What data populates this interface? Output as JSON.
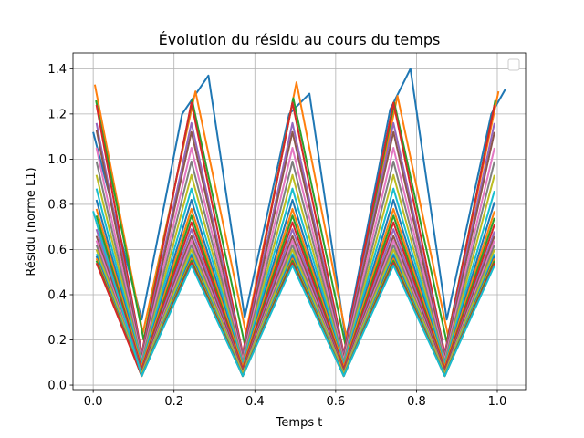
{
  "chart_data": {
    "type": "line",
    "title": "Évolution du résidu au cours du temps",
    "xlabel": "Temps t",
    "ylabel": "Résidu (norme L1)",
    "xlim": [
      -0.05,
      1.07
    ],
    "ylim": [
      -0.02,
      1.47
    ],
    "xticks": [
      "0.0",
      "0.2",
      "0.4",
      "0.6",
      "0.8",
      "1.0"
    ],
    "yticks": [
      "0.0",
      "0.2",
      "0.4",
      "0.6",
      "0.8",
      "1.0",
      "1.2",
      "1.4"
    ],
    "grid": true,
    "legend": "top-right (empty)",
    "period": 0.25,
    "series": [
      {
        "color": "#1f77b4",
        "x": [
          0.0,
          0.12,
          0.22,
          0.285,
          0.375,
          0.485,
          0.535,
          0.625,
          0.735,
          0.785,
          0.875,
          0.985,
          1.02
        ],
        "y": [
          1.12,
          0.29,
          1.2,
          1.37,
          0.3,
          1.2,
          1.29,
          0.2,
          1.22,
          1.4,
          0.29,
          1.2,
          1.31
        ]
      },
      {
        "color": "#ff7f0e",
        "x": [
          0.004,
          0.123,
          0.253,
          0.378,
          0.503,
          0.628,
          0.753,
          0.878,
          1.003
        ],
        "y": [
          1.33,
          0.23,
          1.3,
          0.23,
          1.34,
          0.2,
          1.28,
          0.22,
          1.3
        ]
      },
      {
        "color": "#2ca02c",
        "x": [
          0.007,
          0.125,
          0.245,
          0.375,
          0.495,
          0.625,
          0.745,
          0.875,
          0.995
        ],
        "y": [
          1.26,
          0.2,
          1.26,
          0.18,
          1.27,
          0.17,
          1.25,
          0.19,
          1.26
        ]
      },
      {
        "color": "#d62728",
        "x": [
          0.008,
          0.12,
          0.243,
          0.37,
          0.493,
          0.62,
          0.743,
          0.87,
          0.993
        ],
        "y": [
          1.24,
          0.14,
          1.25,
          0.14,
          1.25,
          0.14,
          1.25,
          0.14,
          1.24
        ]
      },
      {
        "color": "#9467bd",
        "x": [
          0.008,
          0.12,
          0.243,
          0.37,
          0.493,
          0.62,
          0.743,
          0.87,
          0.993
        ],
        "y": [
          1.16,
          0.13,
          1.16,
          0.13,
          1.16,
          0.13,
          1.16,
          0.13,
          1.16
        ]
      },
      {
        "color": "#8c564b",
        "x": [
          0.008,
          0.12,
          0.243,
          0.37,
          0.493,
          0.62,
          0.743,
          0.87,
          0.993
        ],
        "y": [
          1.13,
          0.12,
          1.12,
          0.12,
          1.12,
          0.12,
          1.12,
          0.12,
          1.12
        ]
      },
      {
        "color": "#e377c2",
        "x": [
          0.008,
          0.12,
          0.243,
          0.37,
          0.493,
          0.62,
          0.743,
          0.87,
          0.993
        ],
        "y": [
          1.05,
          0.11,
          1.05,
          0.11,
          1.05,
          0.11,
          1.05,
          0.11,
          1.05
        ]
      },
      {
        "color": "#7f7f7f",
        "x": [
          0.008,
          0.12,
          0.243,
          0.37,
          0.493,
          0.62,
          0.743,
          0.87,
          0.993
        ],
        "y": [
          0.99,
          0.1,
          0.99,
          0.1,
          0.99,
          0.1,
          0.99,
          0.1,
          0.99
        ]
      },
      {
        "color": "#bcbd22",
        "x": [
          0.008,
          0.12,
          0.243,
          0.37,
          0.493,
          0.62,
          0.743,
          0.87,
          0.993
        ],
        "y": [
          0.93,
          0.09,
          0.93,
          0.09,
          0.93,
          0.09,
          0.93,
          0.09,
          0.93
        ]
      },
      {
        "color": "#17becf",
        "x": [
          0.008,
          0.12,
          0.243,
          0.37,
          0.493,
          0.62,
          0.743,
          0.87,
          0.993
        ],
        "y": [
          0.87,
          0.09,
          0.87,
          0.09,
          0.87,
          0.09,
          0.87,
          0.09,
          0.86
        ]
      },
      {
        "color": "#1f77b4",
        "x": [
          0.008,
          0.12,
          0.243,
          0.37,
          0.493,
          0.62,
          0.743,
          0.87,
          0.993
        ],
        "y": [
          0.82,
          0.08,
          0.82,
          0.08,
          0.82,
          0.08,
          0.82,
          0.08,
          0.81
        ]
      },
      {
        "color": "#ff7f0e",
        "x": [
          0.008,
          0.12,
          0.243,
          0.37,
          0.493,
          0.62,
          0.743,
          0.87,
          0.993
        ],
        "y": [
          0.78,
          0.08,
          0.78,
          0.08,
          0.78,
          0.08,
          0.78,
          0.08,
          0.77
        ]
      },
      {
        "color": "#2ca02c",
        "x": [
          0.008,
          0.12,
          0.243,
          0.37,
          0.493,
          0.62,
          0.743,
          0.87,
          0.993
        ],
        "y": [
          0.75,
          0.07,
          0.75,
          0.07,
          0.75,
          0.07,
          0.75,
          0.07,
          0.74
        ]
      },
      {
        "color": "#d62728",
        "x": [
          0.008,
          0.12,
          0.243,
          0.37,
          0.493,
          0.62,
          0.743,
          0.87,
          0.993
        ],
        "y": [
          0.72,
          0.07,
          0.72,
          0.07,
          0.72,
          0.07,
          0.72,
          0.07,
          0.71
        ]
      },
      {
        "color": "#9467bd",
        "x": [
          0.008,
          0.12,
          0.243,
          0.37,
          0.493,
          0.62,
          0.743,
          0.87,
          0.993
        ],
        "y": [
          0.69,
          0.06,
          0.69,
          0.06,
          0.69,
          0.06,
          0.69,
          0.06,
          0.68
        ]
      },
      {
        "color": "#8c564b",
        "x": [
          0.008,
          0.12,
          0.243,
          0.37,
          0.493,
          0.62,
          0.743,
          0.87,
          0.993
        ],
        "y": [
          0.66,
          0.06,
          0.66,
          0.06,
          0.66,
          0.06,
          0.66,
          0.06,
          0.66
        ]
      },
      {
        "color": "#e377c2",
        "x": [
          0.008,
          0.12,
          0.243,
          0.37,
          0.493,
          0.62,
          0.743,
          0.87,
          0.993
        ],
        "y": [
          0.64,
          0.05,
          0.64,
          0.05,
          0.64,
          0.05,
          0.64,
          0.05,
          0.64
        ]
      },
      {
        "color": "#7f7f7f",
        "x": [
          0.008,
          0.12,
          0.243,
          0.37,
          0.493,
          0.62,
          0.743,
          0.87,
          0.993
        ],
        "y": [
          0.62,
          0.05,
          0.62,
          0.05,
          0.62,
          0.05,
          0.62,
          0.05,
          0.62
        ]
      },
      {
        "color": "#bcbd22",
        "x": [
          0.008,
          0.12,
          0.243,
          0.37,
          0.493,
          0.62,
          0.743,
          0.87,
          0.993
        ],
        "y": [
          0.6,
          0.05,
          0.6,
          0.05,
          0.6,
          0.05,
          0.6,
          0.05,
          0.6
        ]
      },
      {
        "color": "#17becf",
        "x": [
          0.008,
          0.12,
          0.243,
          0.37,
          0.493,
          0.62,
          0.743,
          0.87,
          0.993
        ],
        "y": [
          0.58,
          0.04,
          0.58,
          0.04,
          0.58,
          0.04,
          0.58,
          0.04,
          0.58
        ]
      },
      {
        "color": "#1f77b4",
        "x": [
          0.008,
          0.12,
          0.243,
          0.37,
          0.493,
          0.62,
          0.743,
          0.87,
          0.993
        ],
        "y": [
          0.57,
          0.04,
          0.57,
          0.04,
          0.57,
          0.04,
          0.57,
          0.04,
          0.57
        ]
      },
      {
        "color": "#ff7f0e",
        "x": [
          0.008,
          0.12,
          0.243,
          0.37,
          0.493,
          0.62,
          0.743,
          0.87,
          0.993
        ],
        "y": [
          0.56,
          0.04,
          0.56,
          0.04,
          0.56,
          0.04,
          0.56,
          0.04,
          0.56
        ]
      },
      {
        "color": "#2ca02c",
        "x": [
          0.008,
          0.12,
          0.243,
          0.37,
          0.493,
          0.62,
          0.743,
          0.87,
          0.993
        ],
        "y": [
          0.55,
          0.04,
          0.55,
          0.04,
          0.55,
          0.04,
          0.55,
          0.04,
          0.55
        ]
      },
      {
        "color": "#d62728",
        "x": [
          0.008,
          0.12,
          0.243,
          0.37,
          0.493,
          0.62,
          0.743,
          0.87,
          0.993
        ],
        "y": [
          0.54,
          0.04,
          0.54,
          0.04,
          0.54,
          0.04,
          0.54,
          0.04,
          0.54
        ]
      },
      {
        "color": "#17becf",
        "x": [
          0.0,
          0.12,
          0.243,
          0.37,
          0.493,
          0.62,
          0.743,
          0.87,
          0.993
        ],
        "y": [
          0.77,
          0.04,
          0.53,
          0.04,
          0.53,
          0.04,
          0.53,
          0.04,
          0.53
        ]
      }
    ]
  }
}
